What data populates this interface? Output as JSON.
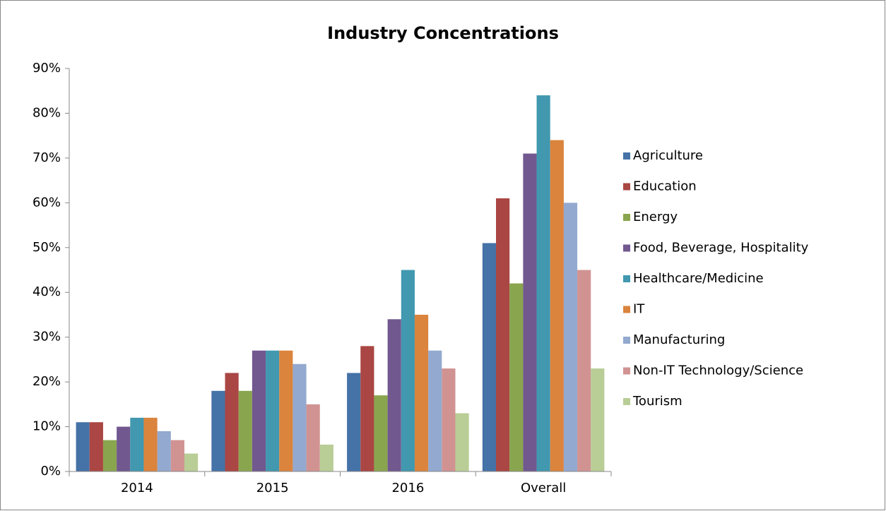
{
  "chart_data": {
    "type": "bar",
    "title": "Industry Concentrations",
    "categories": [
      "2014",
      "2015",
      "2016",
      "Overall"
    ],
    "series": [
      {
        "name": "Agriculture",
        "color": "#4572a7",
        "values": [
          11,
          18,
          22,
          51
        ]
      },
      {
        "name": "Education",
        "color": "#aa4643",
        "values": [
          11,
          22,
          28,
          61
        ]
      },
      {
        "name": "Energy",
        "color": "#89a54e",
        "values": [
          7,
          18,
          17,
          42
        ]
      },
      {
        "name": "Food, Beverage, Hospitality",
        "color": "#71588f",
        "values": [
          10,
          27,
          34,
          71
        ]
      },
      {
        "name": "Healthcare/Medicine",
        "color": "#4198af",
        "values": [
          12,
          27,
          45,
          84
        ]
      },
      {
        "name": "IT",
        "color": "#db843d",
        "values": [
          12,
          27,
          35,
          74
        ]
      },
      {
        "name": "Manufacturing",
        "color": "#93a9cf",
        "values": [
          9,
          24,
          27,
          60
        ]
      },
      {
        "name": "Non-IT Technology/Science",
        "color": "#d19392",
        "values": [
          7,
          15,
          23,
          45
        ]
      },
      {
        "name": "Tourism",
        "color": "#b9cd96",
        "values": [
          4,
          6,
          13,
          23
        ]
      }
    ],
    "ylim": [
      0,
      90
    ],
    "yticks": [
      {
        "value": 0,
        "label": "0%"
      },
      {
        "value": 10,
        "label": "10%"
      },
      {
        "value": 20,
        "label": "20%"
      },
      {
        "value": 30,
        "label": "30%"
      },
      {
        "value": 40,
        "label": "40%"
      },
      {
        "value": 50,
        "label": "50%"
      },
      {
        "value": 60,
        "label": "60%"
      },
      {
        "value": 70,
        "label": "70%"
      },
      {
        "value": 80,
        "label": "80%"
      },
      {
        "value": 90,
        "label": "90%"
      }
    ],
    "grid": false,
    "legend": "right"
  }
}
